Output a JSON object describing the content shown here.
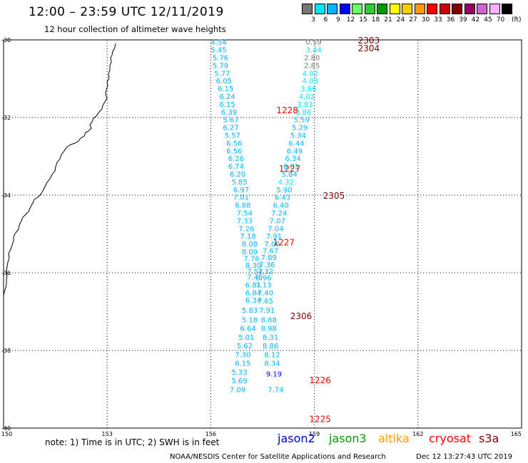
{
  "header": {
    "title": "12:00 – 23:59 UTC 12/11/2019",
    "subtitle": "12 hour collection of altimeter wave heights"
  },
  "legend": {
    "unit": "(ft)",
    "bins": [
      {
        "color": "#777777",
        "label": "3"
      },
      {
        "color": "#00e5ff",
        "label": "6"
      },
      {
        "color": "#00b4ff",
        "label": "9"
      },
      {
        "color": "#0000ff",
        "label": "12"
      },
      {
        "color": "#66ff66",
        "label": "15"
      },
      {
        "color": "#33cc33",
        "label": "18"
      },
      {
        "color": "#009900",
        "label": "21"
      },
      {
        "color": "#ffff00",
        "label": "24"
      },
      {
        "color": "#ffcc00",
        "label": "27"
      },
      {
        "color": "#ff9900",
        "label": "30"
      },
      {
        "color": "#ff0000",
        "label": "33"
      },
      {
        "color": "#cc0000",
        "label": "36"
      },
      {
        "color": "#800000",
        "label": "39"
      },
      {
        "color": "#990066",
        "label": "42"
      },
      {
        "color": "#cc66cc",
        "label": "45"
      },
      {
        "color": "#ffb0ff",
        "label": "70"
      },
      {
        "color": "#000000",
        "label": ""
      }
    ]
  },
  "axes": {
    "lat_labels": [
      "-30",
      "-32",
      "-34",
      "-36",
      "-38",
      "-40"
    ],
    "lon_labels": [
      "150",
      "153",
      "156",
      "159",
      "162",
      "165"
    ],
    "lat_range": [
      -30,
      -40
    ],
    "lon_range": [
      150,
      165
    ]
  },
  "tracks": [
    {
      "satellite": "s3a",
      "time": "2303",
      "color": "#800000",
      "lon": 160.26,
      "lat": -30.0
    },
    {
      "satellite": "s3a",
      "time": "2304",
      "color": "#800000",
      "lon": 160.26,
      "lat": -30.2
    },
    {
      "satellite": "cryosat",
      "time": "1228",
      "color": "#ff0000",
      "lon": 157.9,
      "lat": -31.8
    },
    {
      "satellite": "cryosat",
      "time": "1227",
      "color": "#ff0000",
      "lon": 157.97,
      "lat": -33.3
    },
    {
      "satellite": "s3a",
      "time": "2305",
      "color": "#800000",
      "lon": 159.25,
      "lat": -34.0
    },
    {
      "satellite": "cryosat",
      "time": "1227",
      "color": "#ff0000",
      "lon": 157.8,
      "lat": -35.2
    },
    {
      "satellite": "s3a",
      "time": "2306",
      "color": "#800000",
      "lon": 158.3,
      "lat": -37.1
    },
    {
      "satellite": "cryosat",
      "time": "1226",
      "color": "#ff0000",
      "lon": 158.85,
      "lat": -38.75
    },
    {
      "satellite": "cryosat",
      "time": "1225",
      "color": "#ff0000",
      "lon": 158.85,
      "lat": -39.75
    }
  ],
  "swh_points": [
    {
      "v": "4.54",
      "lon": 156.0,
      "lat": -30.05,
      "color": "#00b4ff"
    },
    {
      "v": "5.45",
      "lon": 156.0,
      "lat": -30.25,
      "color": "#00b4ff"
    },
    {
      "v": "5.76",
      "lon": 156.05,
      "lat": -30.45,
      "color": "#00b4ff"
    },
    {
      "v": "5.79",
      "lon": 156.05,
      "lat": -30.65,
      "color": "#00b4ff"
    },
    {
      "v": "5.77",
      "lon": 156.1,
      "lat": -30.85,
      "color": "#00b4ff"
    },
    {
      "v": "6.05",
      "lon": 156.15,
      "lat": -31.05,
      "color": "#00b4ff"
    },
    {
      "v": "6.15",
      "lon": 156.2,
      "lat": -31.25,
      "color": "#00b4ff"
    },
    {
      "v": "6.24",
      "lon": 156.25,
      "lat": -31.45,
      "color": "#00b4ff"
    },
    {
      "v": "6.15",
      "lon": 156.25,
      "lat": -31.65,
      "color": "#00b4ff"
    },
    {
      "v": "6.39",
      "lon": 156.3,
      "lat": -31.85,
      "color": "#00b4ff"
    },
    {
      "v": "5.67",
      "lon": 156.35,
      "lat": -32.05,
      "color": "#00b4ff"
    },
    {
      "v": "6.27",
      "lon": 156.35,
      "lat": -32.25,
      "color": "#00b4ff"
    },
    {
      "v": "5.57",
      "lon": 156.4,
      "lat": -32.45,
      "color": "#00b4ff"
    },
    {
      "v": "6.56",
      "lon": 156.45,
      "lat": -32.65,
      "color": "#00b4ff"
    },
    {
      "v": "6.56",
      "lon": 156.45,
      "lat": -32.85,
      "color": "#00b4ff"
    },
    {
      "v": "6.26",
      "lon": 156.5,
      "lat": -33.05,
      "color": "#00b4ff"
    },
    {
      "v": "6.74",
      "lon": 156.5,
      "lat": -33.25,
      "color": "#00b4ff"
    },
    {
      "v": "6.20",
      "lon": 156.55,
      "lat": -33.45,
      "color": "#00b4ff"
    },
    {
      "v": "5.85",
      "lon": 156.6,
      "lat": -33.65,
      "color": "#00b4ff"
    },
    {
      "v": "6.97",
      "lon": 156.65,
      "lat": -33.85,
      "color": "#00b4ff"
    },
    {
      "v": "7.01",
      "lon": 156.65,
      "lat": -34.05,
      "color": "#00b4ff"
    },
    {
      "v": "6.88",
      "lon": 156.7,
      "lat": -34.25,
      "color": "#00b4ff"
    },
    {
      "v": "7.54",
      "lon": 156.75,
      "lat": -34.45,
      "color": "#00b4ff"
    },
    {
      "v": "7.33",
      "lon": 156.75,
      "lat": -34.65,
      "color": "#00b4ff"
    },
    {
      "v": "7.26",
      "lon": 156.8,
      "lat": -34.85,
      "color": "#00b4ff"
    },
    {
      "v": "7.18",
      "lon": 156.85,
      "lat": -35.05,
      "color": "#00b4ff"
    },
    {
      "v": "8.08",
      "lon": 156.9,
      "lat": -35.25,
      "color": "#00b4ff"
    },
    {
      "v": "8.09",
      "lon": 156.9,
      "lat": -35.45,
      "color": "#00b4ff"
    },
    {
      "v": "7.76",
      "lon": 156.95,
      "lat": -35.62,
      "color": "#00b4ff"
    },
    {
      "v": "8.30",
      "lon": 157.0,
      "lat": -35.8,
      "color": "#00b4ff"
    },
    {
      "v": "7.52",
      "lon": 157.05,
      "lat": -35.95,
      "color": "#00b4ff"
    },
    {
      "v": "7.45",
      "lon": 157.05,
      "lat": -36.1,
      "color": "#00b4ff"
    },
    {
      "v": "6.81",
      "lon": 157.0,
      "lat": -36.3,
      "color": "#00b4ff"
    },
    {
      "v": "6.84",
      "lon": 157.0,
      "lat": -36.5,
      "color": "#00b4ff"
    },
    {
      "v": "6.34",
      "lon": 157.0,
      "lat": -36.7,
      "color": "#00b4ff"
    },
    {
      "v": "5.83",
      "lon": 156.9,
      "lat": -36.95,
      "color": "#00b4ff"
    },
    {
      "v": "5.18",
      "lon": 156.9,
      "lat": -37.2,
      "color": "#00b4ff"
    },
    {
      "v": "6.64",
      "lon": 156.85,
      "lat": -37.42,
      "color": "#00b4ff"
    },
    {
      "v": "5.01",
      "lon": 156.8,
      "lat": -37.65,
      "color": "#00b4ff"
    },
    {
      "v": "5.62",
      "lon": 156.75,
      "lat": -37.87,
      "color": "#00b4ff"
    },
    {
      "v": "7.30",
      "lon": 156.7,
      "lat": -38.1,
      "color": "#00b4ff"
    },
    {
      "v": "6.15",
      "lon": 156.7,
      "lat": -38.32,
      "color": "#00b4ff"
    },
    {
      "v": "5.33",
      "lon": 156.6,
      "lat": -38.55,
      "color": "#00b4ff"
    },
    {
      "v": "5.69",
      "lon": 156.6,
      "lat": -38.77,
      "color": "#00b4ff"
    },
    {
      "v": "7.09",
      "lon": 156.55,
      "lat": -39.0,
      "color": "#00b4ff"
    },
    {
      "v": "0.59",
      "lon": 158.75,
      "lat": -30.05,
      "color": "#777777"
    },
    {
      "v": "3.44",
      "lon": 158.75,
      "lat": -30.25,
      "color": "#00e5ff"
    },
    {
      "v": "2.80",
      "lon": 158.7,
      "lat": -30.45,
      "color": "#777777"
    },
    {
      "v": "2.85",
      "lon": 158.7,
      "lat": -30.65,
      "color": "#777777"
    },
    {
      "v": "4.02",
      "lon": 158.65,
      "lat": -30.85,
      "color": "#00e5ff"
    },
    {
      "v": "4.03",
      "lon": 158.65,
      "lat": -31.05,
      "color": "#00e5ff"
    },
    {
      "v": "3.86",
      "lon": 158.6,
      "lat": -31.25,
      "color": "#00e5ff"
    },
    {
      "v": "4.02",
      "lon": 158.55,
      "lat": -31.45,
      "color": "#00e5ff"
    },
    {
      "v": "3.83",
      "lon": 158.5,
      "lat": -31.65,
      "color": "#00e5ff"
    },
    {
      "v": "3.88",
      "lon": 158.45,
      "lat": -31.85,
      "color": "#00e5ff"
    },
    {
      "v": "5.59",
      "lon": 158.4,
      "lat": -32.05,
      "color": "#00b4ff"
    },
    {
      "v": "5.29",
      "lon": 158.35,
      "lat": -32.25,
      "color": "#00b4ff"
    },
    {
      "v": "5.34",
      "lon": 158.3,
      "lat": -32.45,
      "color": "#00b4ff"
    },
    {
      "v": "6.44",
      "lon": 158.25,
      "lat": -32.65,
      "color": "#00b4ff"
    },
    {
      "v": "6.49",
      "lon": 158.2,
      "lat": -32.85,
      "color": "#00b4ff"
    },
    {
      "v": "6.34",
      "lon": 158.15,
      "lat": -33.05,
      "color": "#00b4ff"
    },
    {
      "v": "6.01",
      "lon": 158.1,
      "lat": -33.25,
      "color": "#00b4ff"
    },
    {
      "v": "5.84",
      "lon": 158.05,
      "lat": -33.45,
      "color": "#00b4ff"
    },
    {
      "v": "4.32",
      "lon": 157.95,
      "lat": -33.65,
      "color": "#00e5ff"
    },
    {
      "v": "5.90",
      "lon": 157.9,
      "lat": -33.85,
      "color": "#00b4ff"
    },
    {
      "v": "6.43",
      "lon": 157.85,
      "lat": -34.05,
      "color": "#00b4ff"
    },
    {
      "v": "6.40",
      "lon": 157.8,
      "lat": -34.25,
      "color": "#00b4ff"
    },
    {
      "v": "7.24",
      "lon": 157.75,
      "lat": -34.45,
      "color": "#00b4ff"
    },
    {
      "v": "7.07",
      "lon": 157.7,
      "lat": -34.65,
      "color": "#00b4ff"
    },
    {
      "v": "7.04",
      "lon": 157.65,
      "lat": -34.85,
      "color": "#00b4ff"
    },
    {
      "v": "7.91",
      "lon": 157.6,
      "lat": -35.05,
      "color": "#00b4ff"
    },
    {
      "v": "7.06",
      "lon": 157.55,
      "lat": -35.25,
      "color": "#00b4ff"
    },
    {
      "v": "7.67",
      "lon": 157.5,
      "lat": -35.42,
      "color": "#00b4ff"
    },
    {
      "v": "7.89",
      "lon": 157.45,
      "lat": -35.6,
      "color": "#00b4ff"
    },
    {
      "v": "7.36",
      "lon": 157.4,
      "lat": -35.78,
      "color": "#00b4ff"
    },
    {
      "v": "7.32",
      "lon": 157.35,
      "lat": -35.95,
      "color": "#00b4ff"
    },
    {
      "v": "6.96",
      "lon": 157.3,
      "lat": -36.12,
      "color": "#00b4ff"
    },
    {
      "v": "7.13",
      "lon": 157.3,
      "lat": -36.3,
      "color": "#00b4ff"
    },
    {
      "v": "7.40",
      "lon": 157.35,
      "lat": -36.5,
      "color": "#00b4ff"
    },
    {
      "v": "7.65",
      "lon": 157.35,
      "lat": -36.72,
      "color": "#00b4ff"
    },
    {
      "v": "7.91",
      "lon": 157.4,
      "lat": -36.95,
      "color": "#00b4ff"
    },
    {
      "v": "8.88",
      "lon": 157.45,
      "lat": -37.2,
      "color": "#00b4ff"
    },
    {
      "v": "8.98",
      "lon": 157.45,
      "lat": -37.42,
      "color": "#00b4ff"
    },
    {
      "v": "8.31",
      "lon": 157.5,
      "lat": -37.65,
      "color": "#00b4ff"
    },
    {
      "v": "8.86",
      "lon": 157.5,
      "lat": -37.87,
      "color": "#00b4ff"
    },
    {
      "v": "8.12",
      "lon": 157.55,
      "lat": -38.1,
      "color": "#00b4ff"
    },
    {
      "v": "8.34",
      "lon": 157.55,
      "lat": -38.32,
      "color": "#00b4ff"
    },
    {
      "v": "9.19",
      "lon": 157.6,
      "lat": -38.6,
      "color": "#0000ff"
    },
    {
      "v": "7.74",
      "lon": 157.65,
      "lat": -39.0,
      "color": "#00b4ff"
    }
  ],
  "footer": {
    "note": "note:  1) Time is in UTC;  2) SWH is in feet",
    "satellites": [
      {
        "name": "jason2",
        "color": "#0000cc"
      },
      {
        "name": "jason3",
        "color": "#009900"
      },
      {
        "name": "altika",
        "color": "#ff9900"
      },
      {
        "name": "cryosat",
        "color": "#ff0000"
      },
      {
        "name": "s3a",
        "color": "#800000"
      }
    ],
    "credit": "NOAA/NESDIS Center for Satellite Applications and Research",
    "timestamp": "Dec 12 13:27:43 UTC 2019"
  }
}
